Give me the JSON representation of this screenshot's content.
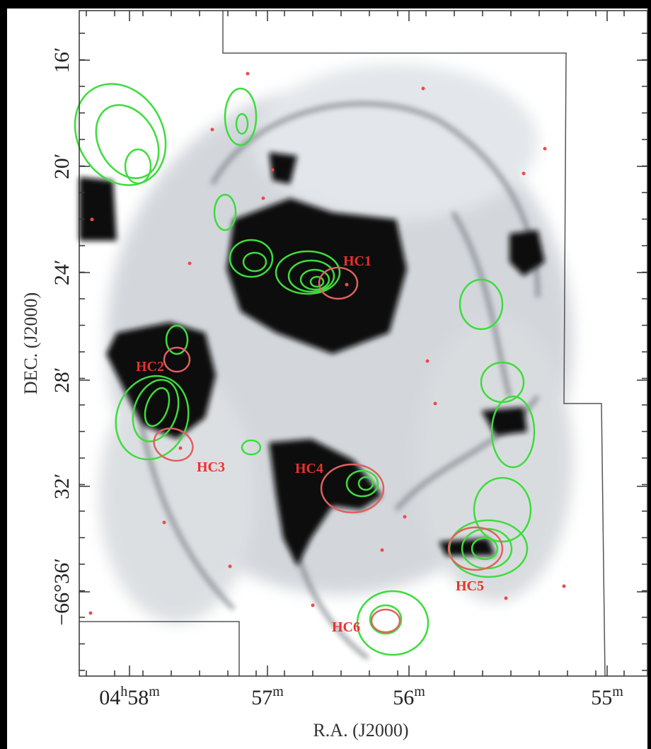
{
  "axes": {
    "x_label": "R.A. (J2000)",
    "y_label": "DEC. (J2000)",
    "x_ticks": [
      [
        "04",
        "h",
        "58",
        "m"
      ],
      [
        "57",
        "m"
      ],
      [
        "56",
        "m"
      ],
      [
        "55",
        "m"
      ]
    ],
    "y_ticks": [
      "16′",
      "20′",
      "24′",
      "28′",
      "32′",
      "−66°36′"
    ]
  },
  "regions": [
    "HC1",
    "HC2",
    "HC3",
    "HC4",
    "HC5",
    "HC6"
  ]
}
